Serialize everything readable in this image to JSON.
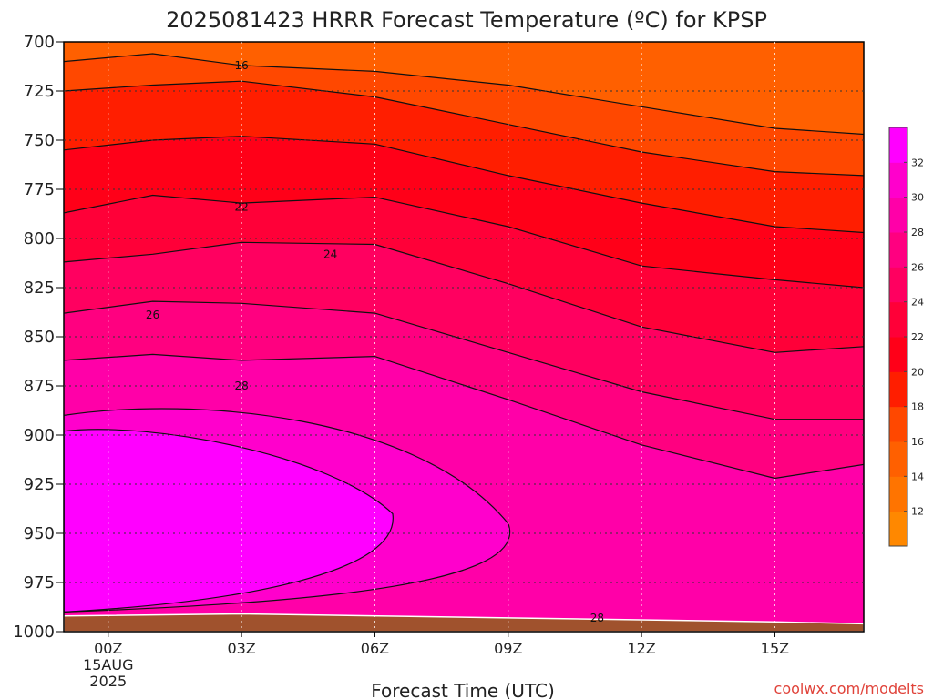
{
  "title": "2025081423 HRRR Forecast Temperature (ºC) for KPSP",
  "credit": "coolwx.com/modelts",
  "chart_data": {
    "type": "heatmap",
    "xlabel": "Forecast Time (UTC)",
    "ylabel": "",
    "x_ticks": [
      "00Z",
      "03Z",
      "06Z",
      "09Z",
      "12Z",
      "15Z"
    ],
    "x_tick_hours": [
      0,
      3,
      6,
      9,
      12,
      15
    ],
    "x_date_label": [
      "15AUG",
      "2025"
    ],
    "xlim_hours": [
      -1,
      17
    ],
    "y_ticks": [
      700,
      725,
      750,
      775,
      800,
      825,
      850,
      875,
      900,
      925,
      950,
      975,
      1000
    ],
    "ylim_pressure": [
      700,
      1000
    ],
    "colorbar": {
      "levels": [
        10,
        12,
        14,
        16,
        18,
        20,
        22,
        24,
        26,
        28,
        30,
        32,
        34
      ],
      "tick_labels": [
        "12",
        "14",
        "16",
        "18",
        "20",
        "22",
        "24",
        "26",
        "28",
        "30",
        "32"
      ],
      "colors": [
        "#ff8800",
        "#ff7400",
        "#ff6000",
        "#ff4800",
        "#ff1e00",
        "#ff0018",
        "#ff0038",
        "#ff0060",
        "#ff0080",
        "#ff00a8",
        "#ff00cc",
        "#ff00ff"
      ]
    },
    "ground_color": "#a0522d",
    "grid": true,
    "contour_labels": [
      {
        "value": "16",
        "hour": 3.0,
        "pressure": 712
      },
      {
        "value": "22",
        "hour": 3.0,
        "pressure": 784
      },
      {
        "value": "24",
        "hour": 5.0,
        "pressure": 808
      },
      {
        "value": "26",
        "hour": 1.0,
        "pressure": 839
      },
      {
        "value": "28",
        "hour": 3.0,
        "pressure": 875
      },
      {
        "value": "28",
        "hour": 11.0,
        "pressure": 993
      }
    ],
    "isotherms": [
      {
        "t": 16,
        "hours": [
          -1,
          1,
          3,
          6,
          9,
          12,
          15,
          17
        ],
        "pressures": [
          710,
          706,
          712,
          715,
          722,
          733,
          744,
          747
        ]
      },
      {
        "t": 18,
        "hours": [
          -1,
          1,
          3,
          6,
          9,
          12,
          15,
          17
        ],
        "pressures": [
          725,
          722,
          720,
          728,
          742,
          756,
          766,
          768
        ]
      },
      {
        "t": 20,
        "hours": [
          -1,
          1,
          3,
          6,
          9,
          12,
          15,
          17
        ],
        "pressures": [
          755,
          750,
          748,
          752,
          768,
          782,
          794,
          797
        ]
      },
      {
        "t": 22,
        "hours": [
          -1,
          1,
          3,
          6,
          9,
          12,
          15,
          17
        ],
        "pressures": [
          787,
          778,
          782,
          779,
          794,
          814,
          821,
          825
        ]
      },
      {
        "t": 24,
        "hours": [
          -1,
          1,
          3,
          6,
          9,
          12,
          15,
          17
        ],
        "pressures": [
          812,
          808,
          802,
          803,
          823,
          845,
          858,
          855
        ]
      },
      {
        "t": 26,
        "hours": [
          -1,
          1,
          3,
          6,
          9,
          12,
          15,
          17
        ],
        "pressures": [
          838,
          832,
          833,
          838,
          858,
          878,
          892,
          892
        ]
      },
      {
        "t": 28,
        "hours": [
          -1,
          1,
          3,
          6,
          9,
          12,
          15,
          17
        ],
        "pressures": [
          862,
          859,
          862,
          860,
          882,
          905,
          922,
          915
        ]
      }
    ]
  }
}
